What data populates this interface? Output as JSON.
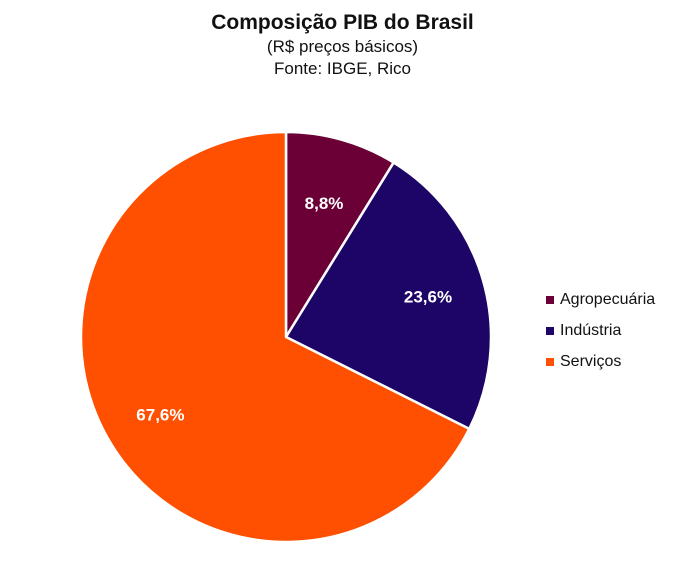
{
  "chart_data": {
    "type": "pie",
    "title": "Composição PIB do Brasil",
    "subtitle": "(R$ preços básicos)",
    "source": "Fonte: IBGE, Rico",
    "categories": [
      "Agropecuária",
      "Indústria",
      "Serviços"
    ],
    "values": [
      8.8,
      23.6,
      67.6
    ],
    "labels": [
      "8,8%",
      "23,6%",
      "67,6%"
    ],
    "colors": [
      "#6b0036",
      "#1c0566",
      "#fe5000"
    ],
    "legend_position": "right",
    "start_angle": "12 o'clock, clockwise"
  },
  "header": {
    "title": "Composição PIB do Brasil",
    "subtitle": "(R$ preços básicos)",
    "source": "Fonte: IBGE, Rico"
  },
  "legend": {
    "items": [
      {
        "label": "Agropecuária",
        "color": "#6b0036"
      },
      {
        "label": "Indústria",
        "color": "#1c0566"
      },
      {
        "label": "Serviços",
        "color": "#fe5000"
      }
    ]
  }
}
